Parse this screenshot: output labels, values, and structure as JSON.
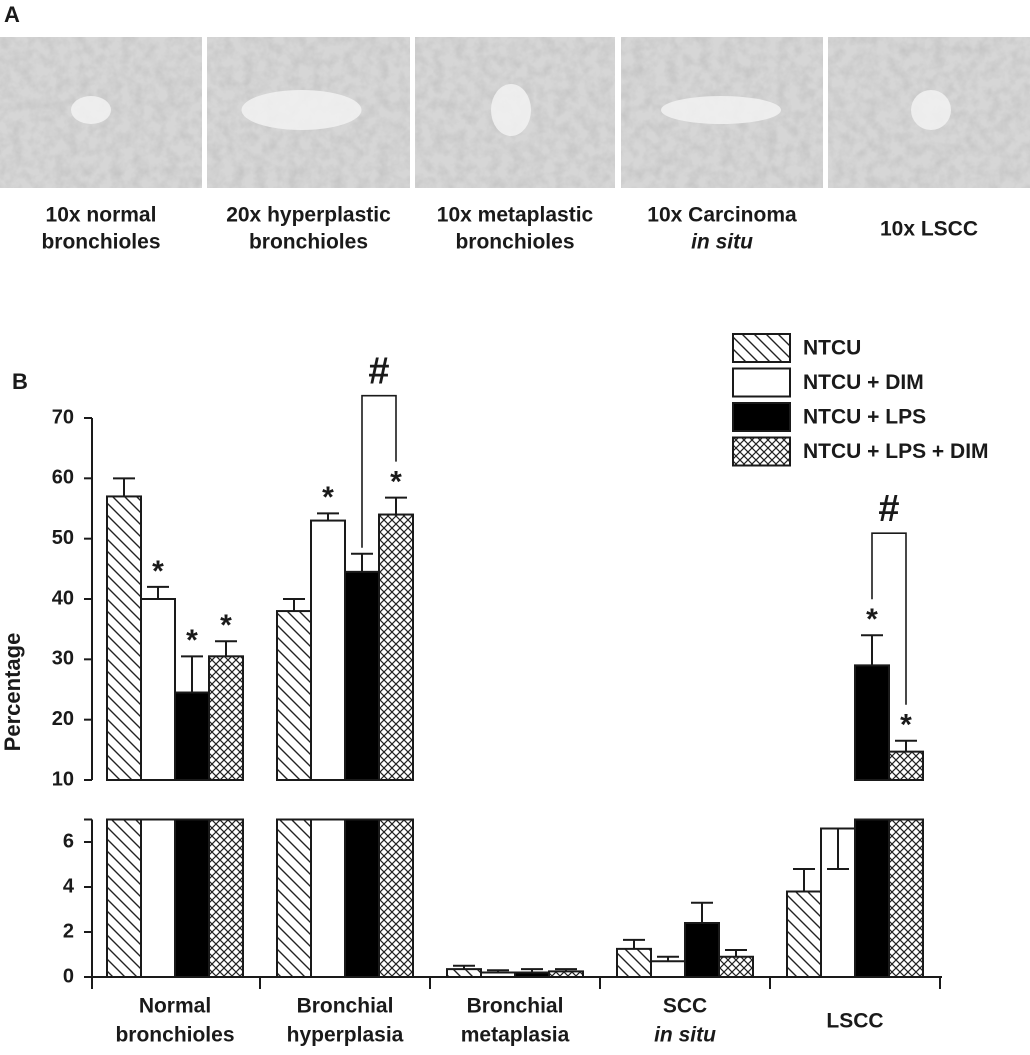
{
  "panel_a": {
    "label": "A",
    "images": [
      {
        "caption": [
          "10x normal",
          "bronchioles"
        ]
      },
      {
        "caption": [
          "20x hyperplastic",
          "bronchioles"
        ]
      },
      {
        "caption": [
          "10x metaplastic",
          "bronchioles"
        ]
      },
      {
        "caption": [
          "10x Carcinoma",
          "in situ"
        ]
      },
      {
        "caption": [
          "10x LSCC"
        ]
      }
    ]
  },
  "chart_data": {
    "type": "bar",
    "panel_label": "B",
    "y_label": "Percentage",
    "categories": [
      [
        "Normal",
        "bronchioles"
      ],
      [
        "Bronchial",
        "hyperplasia"
      ],
      [
        "Bronchial",
        "metaplasia"
      ],
      [
        "SCC",
        "in situ"
      ],
      [
        "LSCC"
      ]
    ],
    "series": [
      {
        "name": "NTCU",
        "color": "#ffffff",
        "pattern": "diagonal",
        "values": [
          57,
          38,
          0.35,
          1.25,
          3.8
        ],
        "errors": [
          3,
          2,
          0.15,
          0.4,
          1.0
        ],
        "significance": [
          null,
          null,
          null,
          null,
          null
        ]
      },
      {
        "name": "NTCU + DIM",
        "color": "#ffffff",
        "pattern": "solid",
        "values": [
          40,
          53,
          0.2,
          0.7,
          6.6
        ],
        "errors": [
          2,
          1.2,
          0.1,
          0.2,
          1.8
        ],
        "significance": [
          "*",
          "*",
          null,
          null,
          null
        ]
      },
      {
        "name": "NTCU + LPS",
        "color": "#000000",
        "pattern": "solid",
        "values": [
          24.5,
          44.5,
          0.2,
          2.4,
          29
        ],
        "errors": [
          6,
          3,
          0.15,
          0.9,
          5
        ],
        "significance": [
          "*",
          null,
          null,
          null,
          "*"
        ]
      },
      {
        "name": "NTCU + LPS + DIM",
        "color": "#ffffff",
        "pattern": "crosshatch",
        "values": [
          30.5,
          54,
          0.25,
          0.9,
          14.7
        ],
        "errors": [
          2.5,
          2.8,
          0.1,
          0.3,
          1.8
        ],
        "significance": [
          "*",
          "*",
          null,
          null,
          "*"
        ]
      }
    ],
    "bracket_labels": [
      null,
      "#",
      null,
      null,
      "#"
    ],
    "ylim_upper": [
      10,
      70
    ],
    "yticks_upper": [
      10,
      20,
      30,
      40,
      50,
      60,
      70
    ],
    "ylim": [
      0,
      7
    ],
    "yticks": [
      0,
      2,
      4,
      6
    ],
    "legend": "top-right"
  }
}
